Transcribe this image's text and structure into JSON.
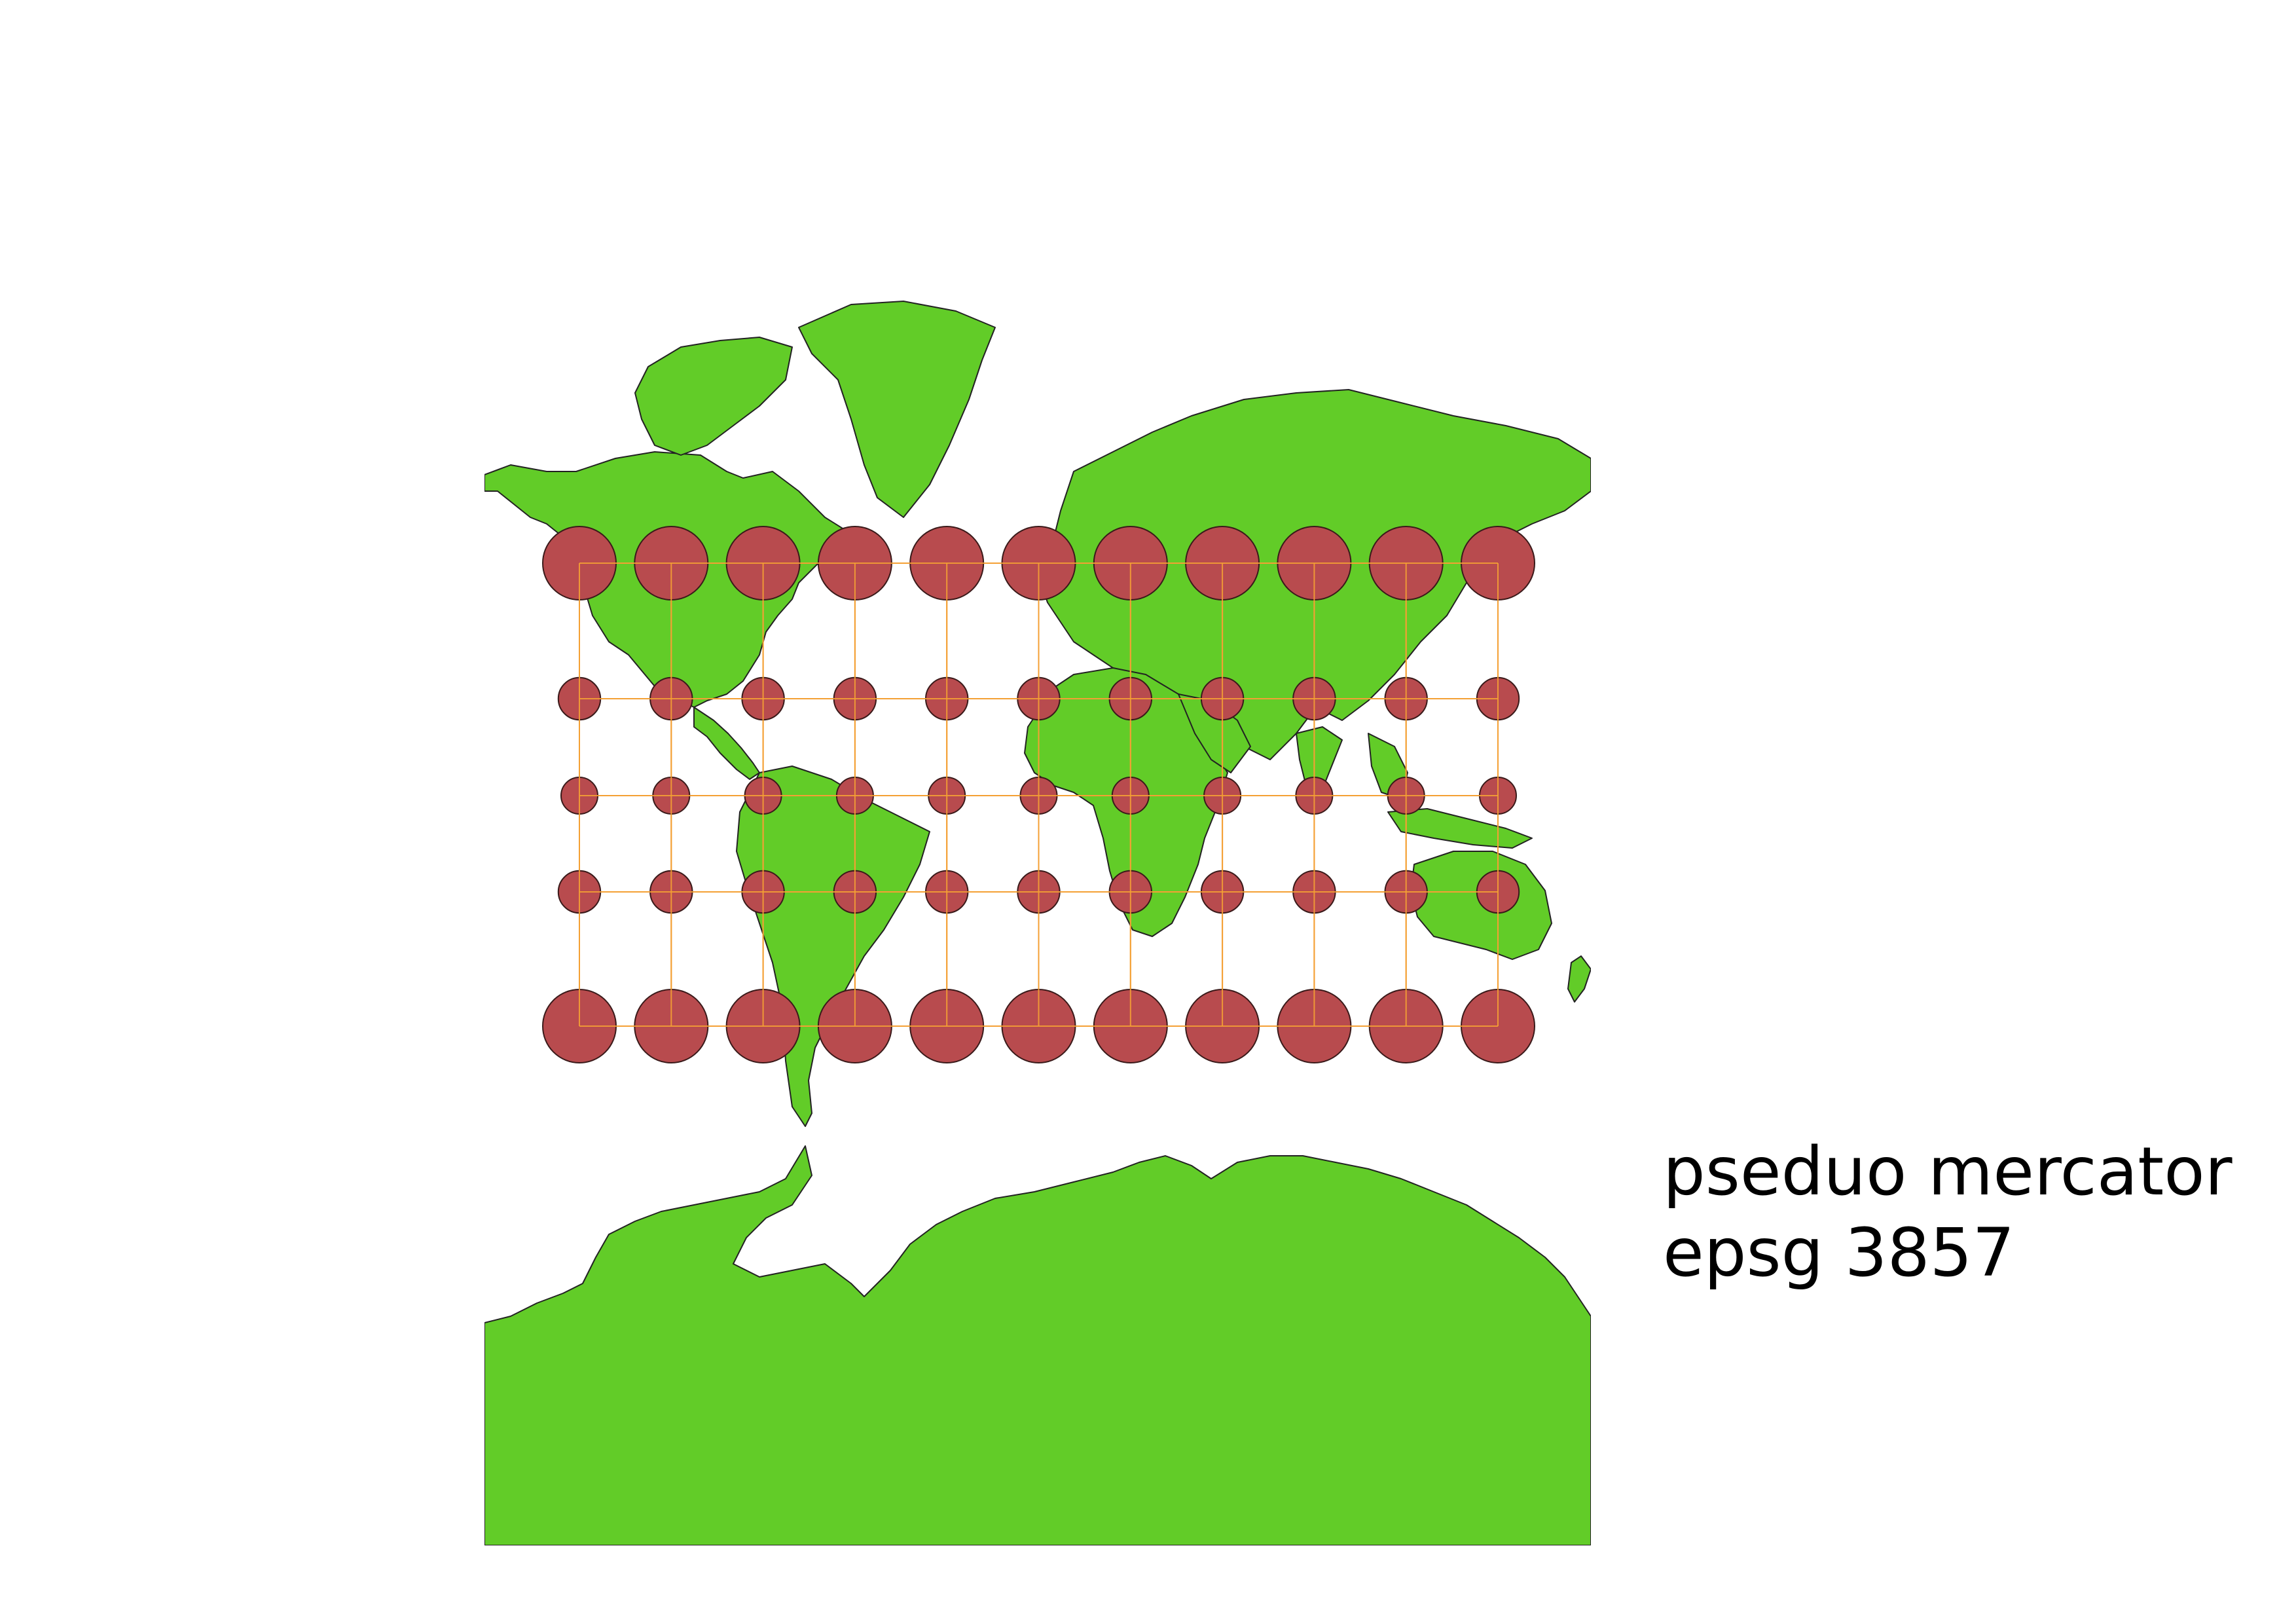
{
  "caption": {
    "line1": "pseduo mercator",
    "line2": "epsg 3857"
  },
  "colors": {
    "land": "#62cc28",
    "land_outline": "#222222",
    "circle_fill": "#b84b4e",
    "circle_outline": "#3a1a1a",
    "graticule": "#f4a034",
    "background": "#ffffff"
  },
  "map": {
    "projection": "Pseudo-Mercator",
    "graticule_longitudes": [
      -150,
      -120,
      -90,
      -60,
      -30,
      0,
      30,
      60,
      90,
      120,
      150
    ],
    "graticule_latitudes": [
      60,
      30,
      0,
      -30,
      -60
    ],
    "indicatrix_radius_scale": {
      "60": 2.0,
      "30": 1.15,
      "0": 1.0,
      "-30": 1.15,
      "-60": 2.0
    }
  }
}
